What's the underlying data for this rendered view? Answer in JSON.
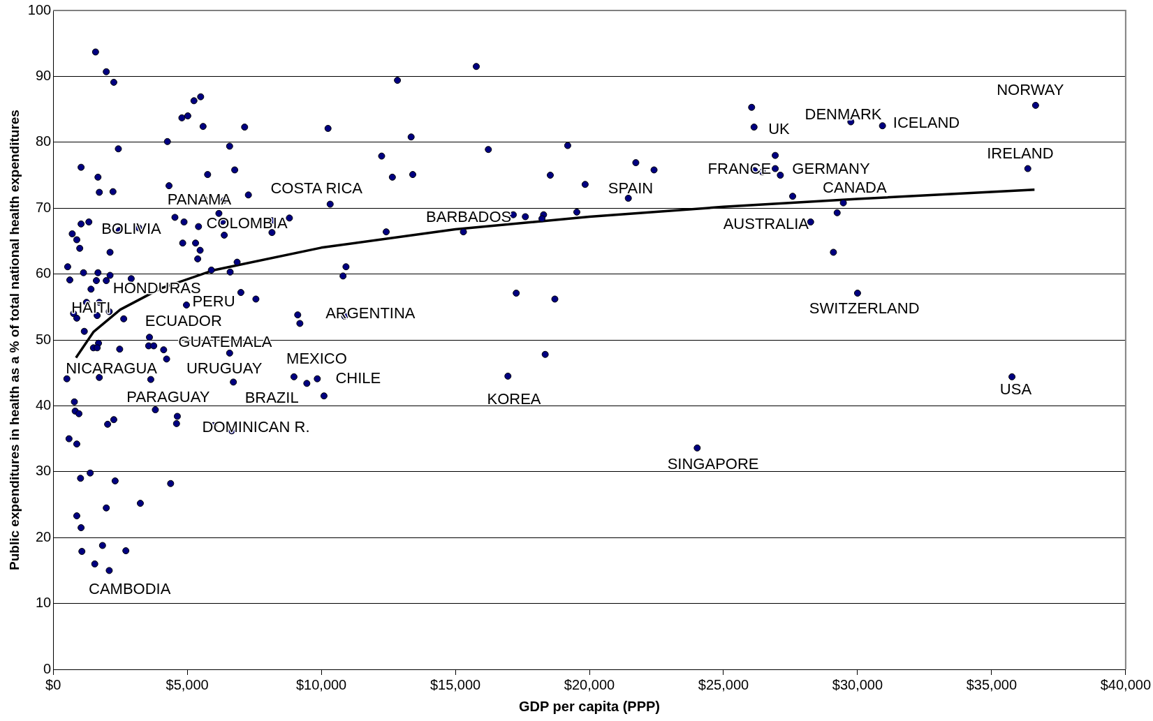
{
  "chart_data": {
    "type": "scatter",
    "xlabel": "GDP per capita (PPP)",
    "ylabel": "Public expenditures in health as a % of total national health expenditures",
    "xlim": [
      0,
      40000
    ],
    "xticks": [
      {
        "value": 0,
        "label": "$0"
      },
      {
        "value": 5000,
        "label": "$5,000"
      },
      {
        "value": 10000,
        "label": "$10,000"
      },
      {
        "value": 15000,
        "label": "$15,000"
      },
      {
        "value": 20000,
        "label": "$20,000"
      },
      {
        "value": 25000,
        "label": "$25,000"
      },
      {
        "value": 30000,
        "label": "$30,000"
      },
      {
        "value": 35000,
        "label": "$35,000"
      },
      {
        "value": 40000,
        "label": "$40,000"
      }
    ],
    "ylim": [
      0,
      100
    ],
    "yticks": [
      0,
      10,
      20,
      30,
      40,
      50,
      60,
      70,
      80,
      90,
      100
    ],
    "grid": "y",
    "legend": false,
    "series": [
      {
        "type": "scatter",
        "color": "#000080",
        "marker": "circle",
        "x": [
          1580,
          1980,
          2260,
          2430,
          4260,
          4800,
          5020,
          5250,
          5500,
          5590,
          7140,
          6580,
          10250,
          1040,
          1670,
          1720,
          2230,
          4320,
          5760,
          6770,
          7280,
          5620,
          6380,
          10330,
          710,
          880,
          990,
          1040,
          1330,
          2460,
          3190,
          2120,
          4540,
          4880,
          5420,
          6180,
          6320,
          6380,
          8160,
          8810,
          8160,
          4830,
          5310,
          5480,
          5390,
          540,
          620,
          1130,
          1670,
          2120,
          1610,
          1980,
          2910,
          1410,
          5900,
          6860,
          6600,
          10920,
          10810,
          7000,
          7560,
          4970,
          1240,
          1720,
          760,
          880,
          1640,
          2090,
          2630,
          1160,
          9120,
          9200,
          10870,
          3590,
          1690,
          1500,
          1640,
          2480,
          3560,
          3750,
          4120,
          4230,
          6580,
          1720,
          3640,
          6720,
          510,
          8980,
          9460,
          9850,
          10100,
          790,
          820,
          960,
          2030,
          2260,
          3810,
          4630,
          4600,
          5980,
          6660,
          590,
          880,
          1380,
          1020,
          2310,
          4380,
          3250,
          1980,
          880,
          1040,
          1840,
          1070,
          2710,
          1550,
          2090,
          15780,
          12840,
          13350,
          12250,
          12650,
          13410,
          16230,
          19190,
          18540,
          19840,
          21730,
          22410,
          21450,
          26050,
          26140,
          12420,
          15300,
          17160,
          17610,
          18290,
          18230,
          19530,
          17270,
          18710,
          18350,
          16960,
          24020,
          26930,
          26160,
          26450,
          26930,
          27120,
          27580,
          29750,
          30930,
          36640,
          36350,
          29470,
          29240,
          28250,
          29100,
          30000,
          35760
        ],
        "values": [
          93.7,
          90.7,
          89.1,
          79.0,
          80.1,
          83.7,
          84.0,
          86.3,
          86.9,
          82.4,
          82.3,
          79.4,
          82.1,
          76.2,
          74.7,
          72.4,
          72.5,
          73.4,
          75.1,
          75.8,
          72.0,
          71.4,
          71.2,
          70.6,
          66.1,
          65.2,
          63.9,
          67.6,
          67.9,
          66.6,
          67.0,
          63.3,
          68.6,
          67.9,
          67.2,
          69.2,
          68.0,
          65.9,
          68.1,
          68.5,
          66.3,
          64.7,
          64.7,
          63.6,
          62.3,
          61.1,
          59.1,
          60.2,
          60.2,
          59.8,
          59.0,
          59.0,
          59.3,
          57.7,
          60.6,
          61.8,
          60.3,
          61.1,
          59.7,
          57.2,
          56.2,
          55.3,
          55.7,
          55.7,
          54.0,
          53.3,
          53.7,
          54.3,
          53.2,
          51.3,
          53.8,
          52.5,
          53.6,
          50.4,
          49.5,
          48.8,
          48.8,
          48.6,
          49.1,
          49.1,
          48.5,
          47.1,
          48.0,
          44.3,
          44.0,
          43.6,
          44.1,
          44.4,
          43.4,
          44.1,
          41.5,
          40.6,
          39.2,
          38.8,
          37.2,
          37.9,
          39.4,
          38.4,
          37.3,
          37.0,
          36.2,
          35.0,
          34.2,
          29.8,
          29.0,
          28.6,
          28.2,
          25.2,
          24.5,
          23.3,
          21.5,
          18.8,
          17.9,
          18.0,
          16.0,
          15.0,
          91.5,
          89.4,
          80.8,
          77.9,
          74.7,
          75.1,
          78.9,
          79.5,
          75.0,
          73.6,
          76.9,
          75.8,
          71.5,
          85.3,
          82.3,
          66.4,
          66.4,
          69.0,
          68.7,
          69.0,
          68.4,
          69.4,
          57.1,
          56.2,
          47.8,
          44.5,
          33.6,
          78.0,
          75.7,
          75.5,
          76.0,
          75.0,
          71.8,
          83.1,
          82.5,
          85.6,
          76.0,
          70.8,
          69.3,
          67.9,
          63.3,
          57.1,
          44.4
        ]
      },
      {
        "type": "line",
        "color": "#000000",
        "marker": "none",
        "line_style": "solid",
        "x": [
          850,
          1500,
          2500,
          4000,
          6000,
          10000,
          15000,
          20000,
          25000,
          30000,
          36600
        ],
        "values": [
          47.3,
          51.2,
          54.6,
          57.8,
          60.6,
          64.0,
          66.8,
          68.7,
          70.2,
          71.4,
          72.8
        ]
      }
    ],
    "annotations": [
      {
        "text": "NORWAY",
        "x": 36640,
        "y": 85.6
      },
      {
        "text": "DENMARK",
        "x": 29750,
        "y": 83.1
      },
      {
        "text": "ICELAND",
        "x": 30930,
        "y": 82.5
      },
      {
        "text": "UK",
        "x": 26140,
        "y": 82.3
      },
      {
        "text": "IRELAND",
        "x": 36350,
        "y": 76.0
      },
      {
        "text": "FRANCE",
        "x": 26160,
        "y": 75.7
      },
      {
        "text": "GERMANY",
        "x": 27120,
        "y": 75.0
      },
      {
        "text": "SPAIN",
        "x": 21450,
        "y": 71.5
      },
      {
        "text": "CANADA",
        "x": 29470,
        "y": 70.8
      },
      {
        "text": "COSTA RICA",
        "x": 7280,
        "y": 72.0
      },
      {
        "text": "PANAMA",
        "x": 5620,
        "y": 71.4
      },
      {
        "text": "COLOMBIA",
        "x": 6320,
        "y": 68.0
      },
      {
        "text": "BOLIVIA",
        "x": 2460,
        "y": 66.6
      },
      {
        "text": "BARBADOS",
        "x": 15300,
        "y": 66.4
      },
      {
        "text": "AUSTRALIA",
        "x": 28250,
        "y": 67.9
      },
      {
        "text": "HONDURAS",
        "x": 2910,
        "y": 59.3
      },
      {
        "text": "PERU",
        "x": 4970,
        "y": 55.3
      },
      {
        "text": "HAITI",
        "x": 1240,
        "y": 55.7
      },
      {
        "text": "ARGENTINA",
        "x": 10870,
        "y": 53.6
      },
      {
        "text": "SWITZERLAND",
        "x": 30000,
        "y": 57.1
      },
      {
        "text": "ECUADOR",
        "x": 2630,
        "y": 53.2
      },
      {
        "text": "GUATEMALA",
        "x": 3590,
        "y": 50.4
      },
      {
        "text": "MEXICO",
        "x": 8980,
        "y": 44.4
      },
      {
        "text": "NICARAGUA",
        "x": 1720,
        "y": 44.3
      },
      {
        "text": "URUGUAY",
        "x": 6720,
        "y": 43.6
      },
      {
        "text": "CHILE",
        "x": 9850,
        "y": 44.1
      },
      {
        "text": "PARAGUAY",
        "x": 3810,
        "y": 39.4
      },
      {
        "text": "BRAZIL",
        "x": 10100,
        "y": 41.5
      },
      {
        "text": "KOREA",
        "x": 16960,
        "y": 44.5
      },
      {
        "text": "USA",
        "x": 35760,
        "y": 44.4
      },
      {
        "text": "DOMINICAN R.",
        "x": 6660,
        "y": 36.2
      },
      {
        "text": "SINGAPORE",
        "x": 24020,
        "y": 33.6
      },
      {
        "text": "CAMBODIA",
        "x": 2090,
        "y": 15.0
      }
    ]
  }
}
